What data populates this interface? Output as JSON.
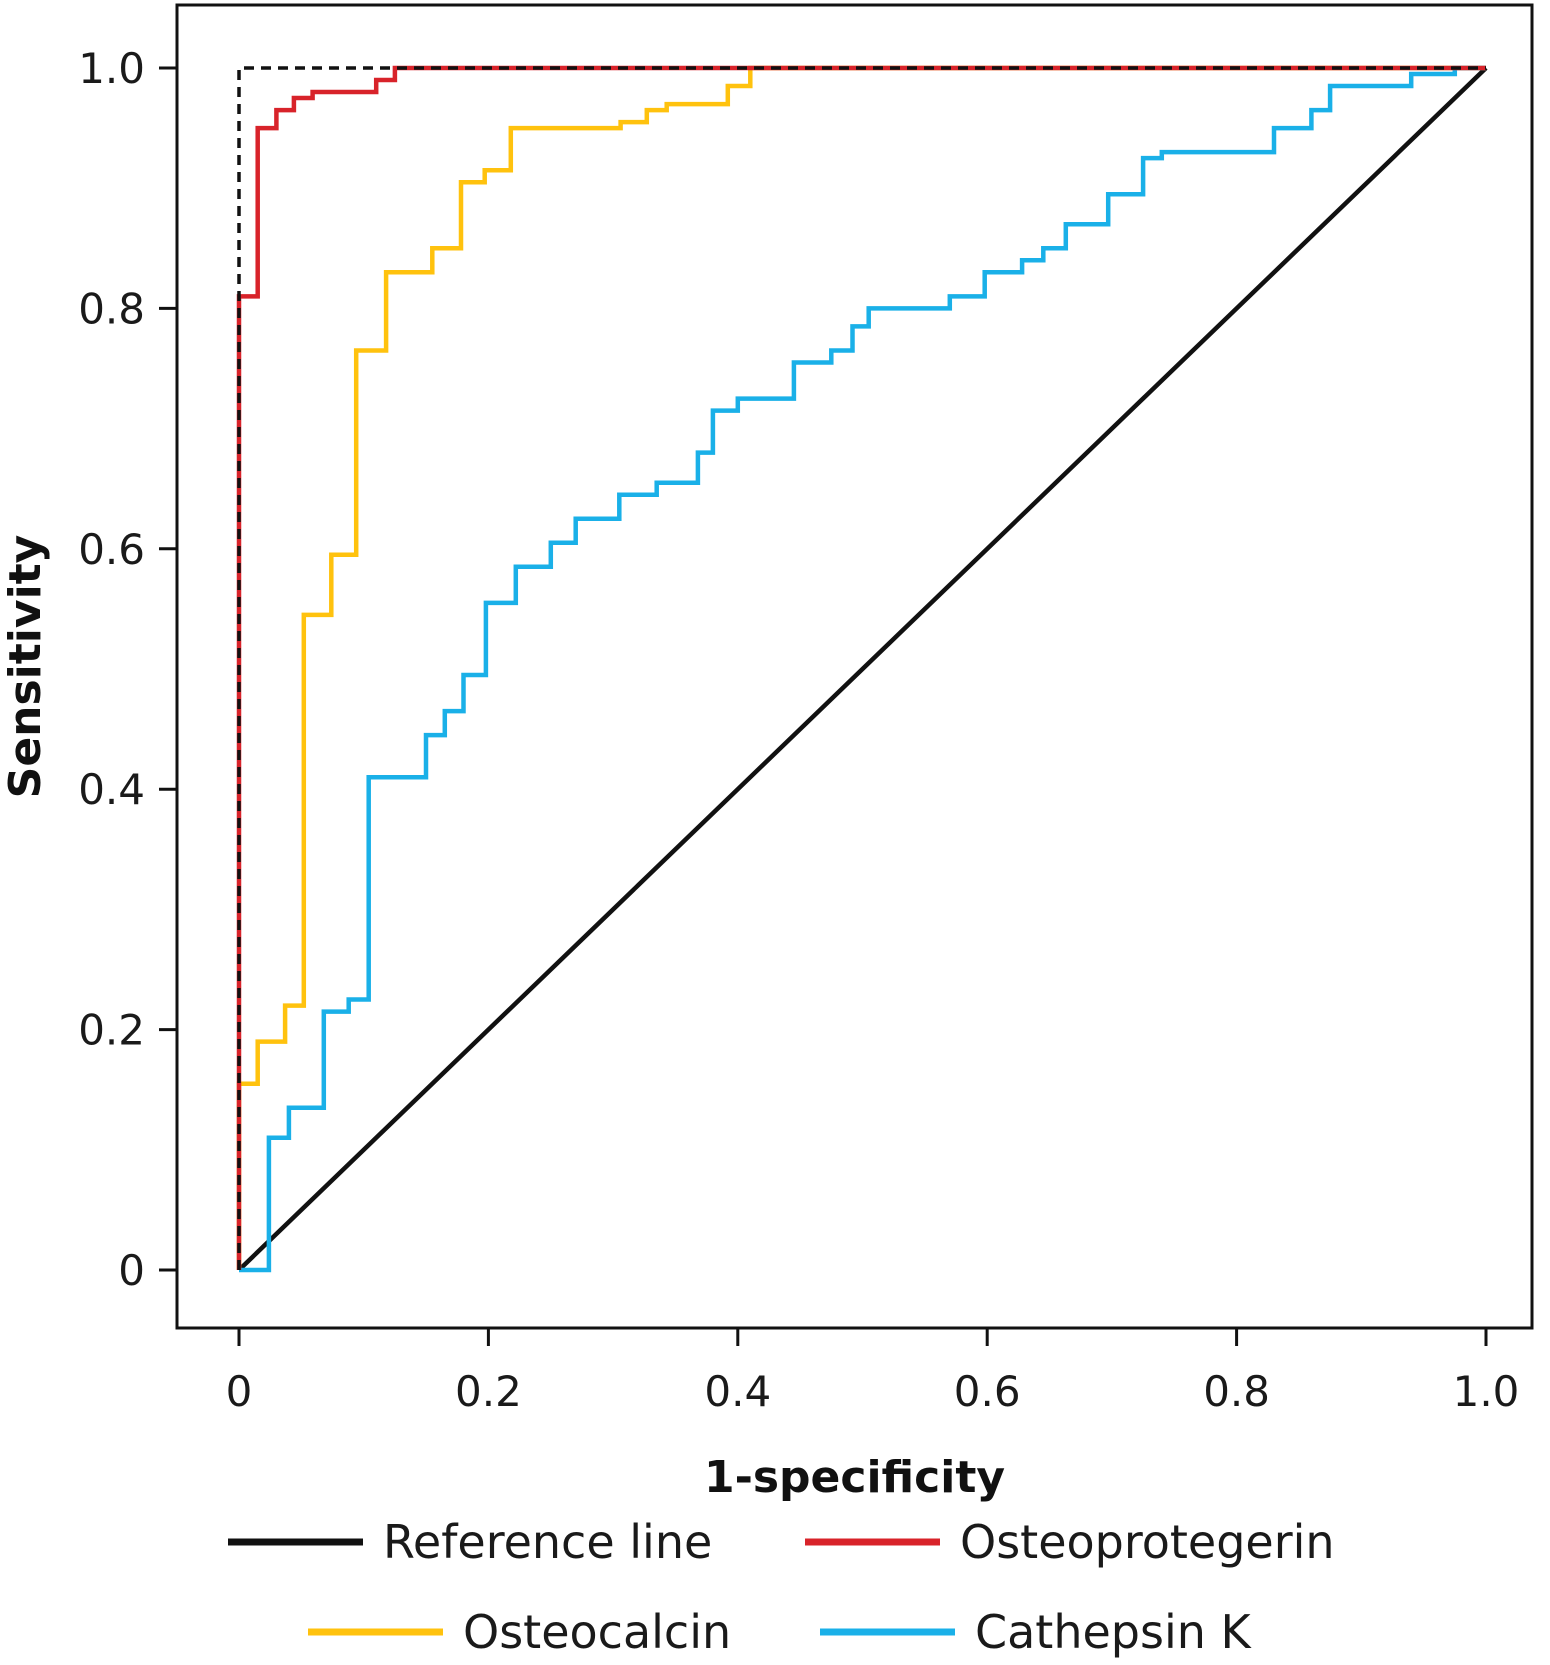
{
  "chart_data": {
    "type": "line",
    "title": "",
    "xlabel": "1-specificity",
    "ylabel": "Sensitivity",
    "xlim": [
      0,
      1
    ],
    "ylim": [
      0,
      1
    ],
    "x_ticks": [
      0,
      0.2,
      0.4,
      0.6,
      0.8,
      1.0
    ],
    "x_tick_labels": [
      "0",
      "0.2",
      "0.4",
      "0.6",
      "0.8",
      "1.0"
    ],
    "y_ticks": [
      0,
      0.2,
      0.4,
      0.6,
      0.8,
      1.0
    ],
    "y_tick_labels": [
      "0",
      "0.2",
      "0.4",
      "0.6",
      "0.8",
      "1.0"
    ],
    "grid": false,
    "legend_position": "bottom",
    "series": [
      {
        "name": "Reference line",
        "color": "#111111",
        "style": "solid",
        "x": [
          0,
          1
        ],
        "y": [
          0,
          1
        ]
      },
      {
        "name": "Osteoprotegerin",
        "color": "#d8232a",
        "style": "solid",
        "x": [
          0,
          0,
          0.015,
          0.015,
          0.03,
          0.03,
          0.044,
          0.044,
          0.059,
          0.059,
          0.11,
          0.11,
          0.125,
          0.125,
          1
        ],
        "y": [
          0,
          0.81,
          0.81,
          0.95,
          0.95,
          0.965,
          0.965,
          0.975,
          0.975,
          0.98,
          0.98,
          0.99,
          0.99,
          1.0,
          1.0
        ]
      },
      {
        "name": "",
        "color": "#111111",
        "style": "dashed",
        "x": [
          0,
          0,
          1
        ],
        "y": [
          0,
          1.0,
          1.0
        ]
      },
      {
        "name": "Osteocalcin",
        "color": "#ffc20e",
        "style": "solid",
        "x": [
          0,
          0,
          0.015,
          0.015,
          0.037,
          0.037,
          0.052,
          0.052,
          0.074,
          0.074,
          0.094,
          0.094,
          0.118,
          0.118,
          0.155,
          0.155,
          0.178,
          0.178,
          0.197,
          0.197,
          0.218,
          0.218,
          0.306,
          0.306,
          0.327,
          0.327,
          0.343,
          0.343,
          0.392,
          0.392,
          0.41,
          0.41,
          1
        ],
        "y": [
          0,
          0.155,
          0.155,
          0.19,
          0.19,
          0.22,
          0.22,
          0.545,
          0.545,
          0.595,
          0.595,
          0.765,
          0.765,
          0.83,
          0.83,
          0.85,
          0.85,
          0.905,
          0.905,
          0.915,
          0.915,
          0.95,
          0.95,
          0.955,
          0.955,
          0.965,
          0.965,
          0.97,
          0.97,
          0.985,
          0.985,
          1.0,
          1.0
        ]
      },
      {
        "name": "Cathepsin K",
        "color": "#1ab0e8",
        "style": "solid",
        "x": [
          0,
          0.024,
          0.024,
          0.04,
          0.04,
          0.068,
          0.068,
          0.088,
          0.088,
          0.104,
          0.104,
          0.15,
          0.15,
          0.165,
          0.165,
          0.18,
          0.18,
          0.198,
          0.198,
          0.222,
          0.222,
          0.25,
          0.25,
          0.27,
          0.27,
          0.305,
          0.305,
          0.335,
          0.335,
          0.368,
          0.368,
          0.38,
          0.38,
          0.4,
          0.4,
          0.445,
          0.445,
          0.475,
          0.475,
          0.492,
          0.492,
          0.505,
          0.505,
          0.57,
          0.57,
          0.598,
          0.598,
          0.628,
          0.628,
          0.645,
          0.645,
          0.663,
          0.663,
          0.697,
          0.697,
          0.725,
          0.725,
          0.74,
          0.74,
          0.83,
          0.83,
          0.86,
          0.86,
          0.875,
          0.875,
          0.94,
          0.94,
          0.975,
          0.975,
          1.0
        ],
        "y": [
          0,
          0,
          0.11,
          0.11,
          0.135,
          0.135,
          0.215,
          0.215,
          0.225,
          0.225,
          0.41,
          0.41,
          0.445,
          0.445,
          0.465,
          0.465,
          0.495,
          0.495,
          0.555,
          0.555,
          0.585,
          0.585,
          0.605,
          0.605,
          0.625,
          0.625,
          0.645,
          0.645,
          0.655,
          0.655,
          0.68,
          0.68,
          0.715,
          0.715,
          0.725,
          0.725,
          0.755,
          0.755,
          0.765,
          0.765,
          0.785,
          0.785,
          0.8,
          0.8,
          0.81,
          0.81,
          0.83,
          0.83,
          0.84,
          0.84,
          0.85,
          0.85,
          0.87,
          0.87,
          0.895,
          0.895,
          0.925,
          0.925,
          0.93,
          0.93,
          0.95,
          0.95,
          0.965,
          0.965,
          0.985,
          0.985,
          0.995,
          0.995,
          1.0,
          1.0
        ]
      }
    ],
    "legend": [
      {
        "name": "Reference line",
        "color": "#111111"
      },
      {
        "name": "Osteoprotegerin",
        "color": "#d8232a"
      },
      {
        "name": "Osteocalcin",
        "color": "#ffc20e"
      },
      {
        "name": "Cathepsin K",
        "color": "#1ab0e8"
      }
    ]
  }
}
